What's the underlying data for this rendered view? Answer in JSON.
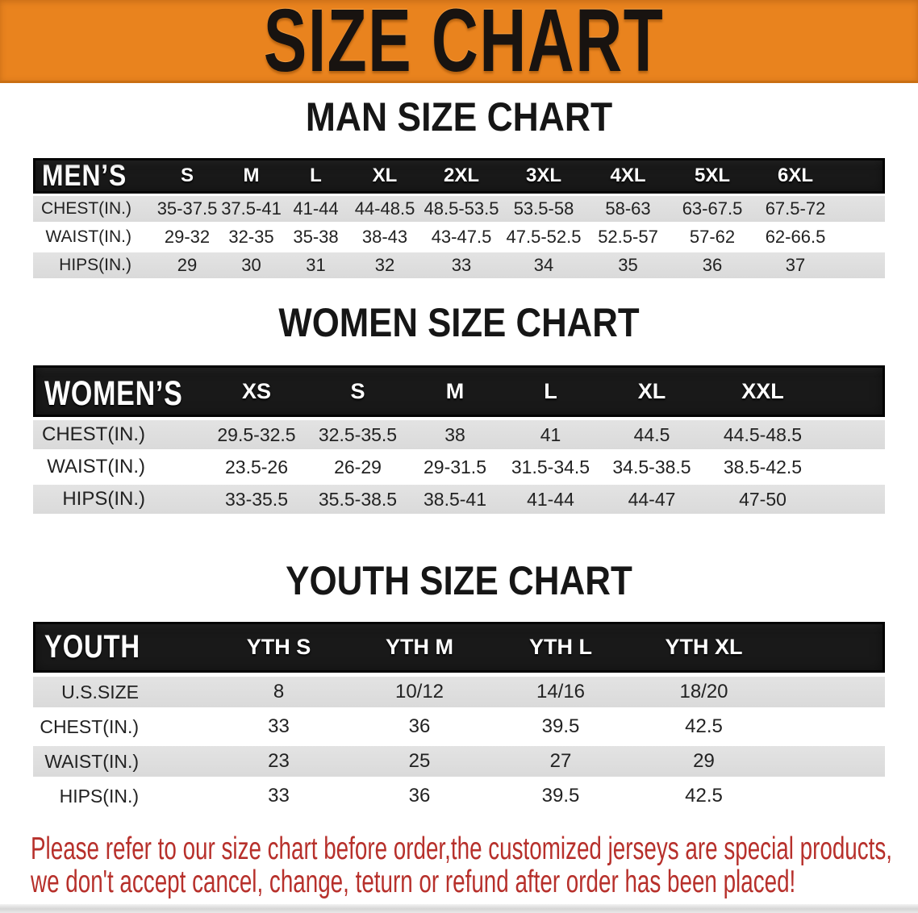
{
  "banner": {
    "title": "SIZE CHART",
    "background_color": "#e9831e",
    "text_color": "#181310"
  },
  "sections": [
    {
      "heading": "MAN SIZE CHART"
    },
    {
      "heading": "WOMEN SIZE CHART"
    },
    {
      "heading": "YOUTH SIZE CHART"
    }
  ],
  "chart_data": [
    {
      "type": "table",
      "title": "MAN SIZE CHART",
      "header_label": "MEN’S",
      "columns": [
        "S",
        "M",
        "L",
        "XL",
        "2XL",
        "3XL",
        "4XL",
        "5XL",
        "6XL"
      ],
      "rows": [
        {
          "label": "CHEST(IN.)",
          "values": [
            "35-37.5",
            "37.5-41",
            "41-44",
            "44-48.5",
            "48.5-53.5",
            "53.5-58",
            "58-63",
            "63-67.5",
            "67.5-72"
          ]
        },
        {
          "label": "WAIST(IN.)",
          "values": [
            "29-32",
            "32-35",
            "35-38",
            "38-43",
            "43-47.5",
            "47.5-52.5",
            "52.5-57",
            "57-62",
            "62-66.5"
          ]
        },
        {
          "label": "HIPS(IN.)",
          "values": [
            "29",
            "30",
            "31",
            "32",
            "33",
            "34",
            "35",
            "36",
            "37"
          ]
        }
      ]
    },
    {
      "type": "table",
      "title": "WOMEN SIZE CHART",
      "header_label": "WOMEN’S",
      "columns": [
        "XS",
        "S",
        "M",
        "L",
        "XL",
        "XXL"
      ],
      "rows": [
        {
          "label": "CHEST(IN.)",
          "values": [
            "29.5-32.5",
            "32.5-35.5",
            "38",
            "41",
            "44.5",
            "44.5-48.5"
          ]
        },
        {
          "label": "WAIST(IN.)",
          "values": [
            "23.5-26",
            "26-29",
            "29-31.5",
            "31.5-34.5",
            "34.5-38.5",
            "38.5-42.5"
          ]
        },
        {
          "label": "HIPS(IN.)",
          "values": [
            "33-35.5",
            "35.5-38.5",
            "38.5-41",
            "41-44",
            "44-47",
            "47-50"
          ]
        }
      ]
    },
    {
      "type": "table",
      "title": "YOUTH SIZE CHART",
      "header_label": "YOUTH",
      "columns": [
        "YTH S",
        "YTH M",
        "YTH L",
        "YTH XL"
      ],
      "rows": [
        {
          "label": "U.S.SIZE",
          "values": [
            "8",
            "10/12",
            "14/16",
            "18/20"
          ]
        },
        {
          "label": "CHEST(IN.)",
          "values": [
            "33",
            "36",
            "39.5",
            "42.5"
          ]
        },
        {
          "label": "WAIST(IN.)",
          "values": [
            "23",
            "25",
            "27",
            "29"
          ]
        },
        {
          "label": "HIPS(IN.)",
          "values": [
            "33",
            "36",
            "39.5",
            "42.5"
          ]
        }
      ]
    }
  ],
  "footer": {
    "lines": [
      "Please refer to our size chart before order,the customized jerseys are special products,",
      "we don't accept cancel, change, teturn or refund after order has been placed!"
    ],
    "text_color": "#b7302b"
  },
  "colors": {
    "banner_orange": "#e9831e",
    "table_header_black": "#191919",
    "row_gray": "#dedede",
    "row_white": "#ffffff",
    "footer_red": "#b7302b"
  }
}
